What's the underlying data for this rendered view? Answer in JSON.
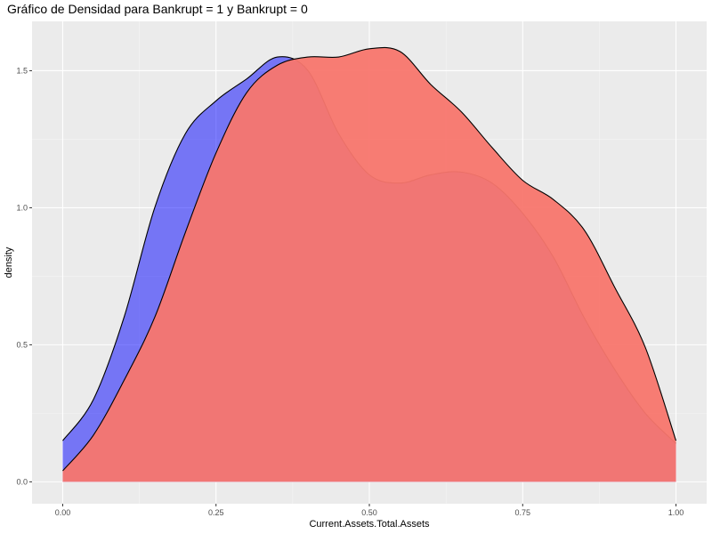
{
  "chart_data": {
    "type": "area",
    "title": "Gráfico de Densidad para Bankrupt = 1 y Bankrupt = 0",
    "xlabel": "Current.Assets.Total.Assets",
    "ylabel": "density",
    "xlim": [
      -0.05,
      1.05
    ],
    "ylim": [
      -0.08,
      1.68
    ],
    "x_ticks": [
      0.0,
      0.25,
      0.5,
      0.75,
      1.0
    ],
    "x_tick_labels": [
      "0.00",
      "0.25",
      "0.50",
      "0.75",
      "1.00"
    ],
    "y_ticks": [
      0.0,
      0.5,
      1.0,
      1.5
    ],
    "y_tick_labels": [
      "0.0",
      "0.5",
      "1.0",
      "1.5"
    ],
    "grid": true,
    "legend": "none",
    "colors": {
      "panel": "#ebebeb",
      "grid_major": "#ffffff",
      "grid_minor": "#f5f5f5",
      "outline": "#000000"
    },
    "series": [
      {
        "fill": "#0000ff",
        "opacity": 0.5,
        "x": [
          0.0,
          0.05,
          0.1,
          0.15,
          0.2,
          0.25,
          0.3,
          0.35,
          0.4,
          0.45,
          0.5,
          0.55,
          0.6,
          0.65,
          0.7,
          0.75,
          0.8,
          0.85,
          0.9,
          0.95,
          1.0
        ],
        "y": [
          0.15,
          0.3,
          0.6,
          1.0,
          1.27,
          1.39,
          1.47,
          1.55,
          1.5,
          1.27,
          1.12,
          1.09,
          1.12,
          1.13,
          1.09,
          0.98,
          0.82,
          0.6,
          0.41,
          0.25,
          0.14
        ]
      },
      {
        "fill": "#f8766d",
        "opacity": 0.95,
        "x": [
          0.0,
          0.05,
          0.1,
          0.15,
          0.2,
          0.25,
          0.3,
          0.35,
          0.4,
          0.45,
          0.5,
          0.55,
          0.6,
          0.65,
          0.7,
          0.75,
          0.8,
          0.85,
          0.9,
          0.95,
          1.0
        ],
        "y": [
          0.04,
          0.17,
          0.37,
          0.6,
          0.91,
          1.2,
          1.42,
          1.52,
          1.55,
          1.55,
          1.58,
          1.57,
          1.45,
          1.35,
          1.22,
          1.1,
          1.03,
          0.92,
          0.71,
          0.49,
          0.15
        ]
      }
    ]
  }
}
